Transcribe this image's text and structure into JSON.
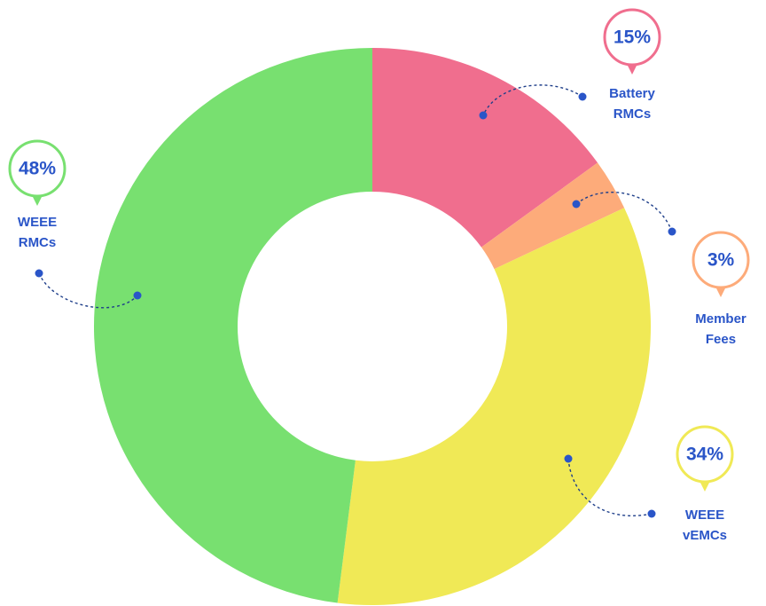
{
  "chart_data": {
    "type": "donut",
    "categories": [
      "Battery RMCs",
      "Member Fees",
      "WEEE vEMCs",
      "WEEE RMCs"
    ],
    "values": [
      15,
      3,
      34,
      48
    ],
    "value_labels": [
      "15%",
      "3%",
      "34%",
      "48%"
    ],
    "colors": [
      "#f06e8e",
      "#fdab7a",
      "#f0e956",
      "#78e070"
    ]
  }
}
